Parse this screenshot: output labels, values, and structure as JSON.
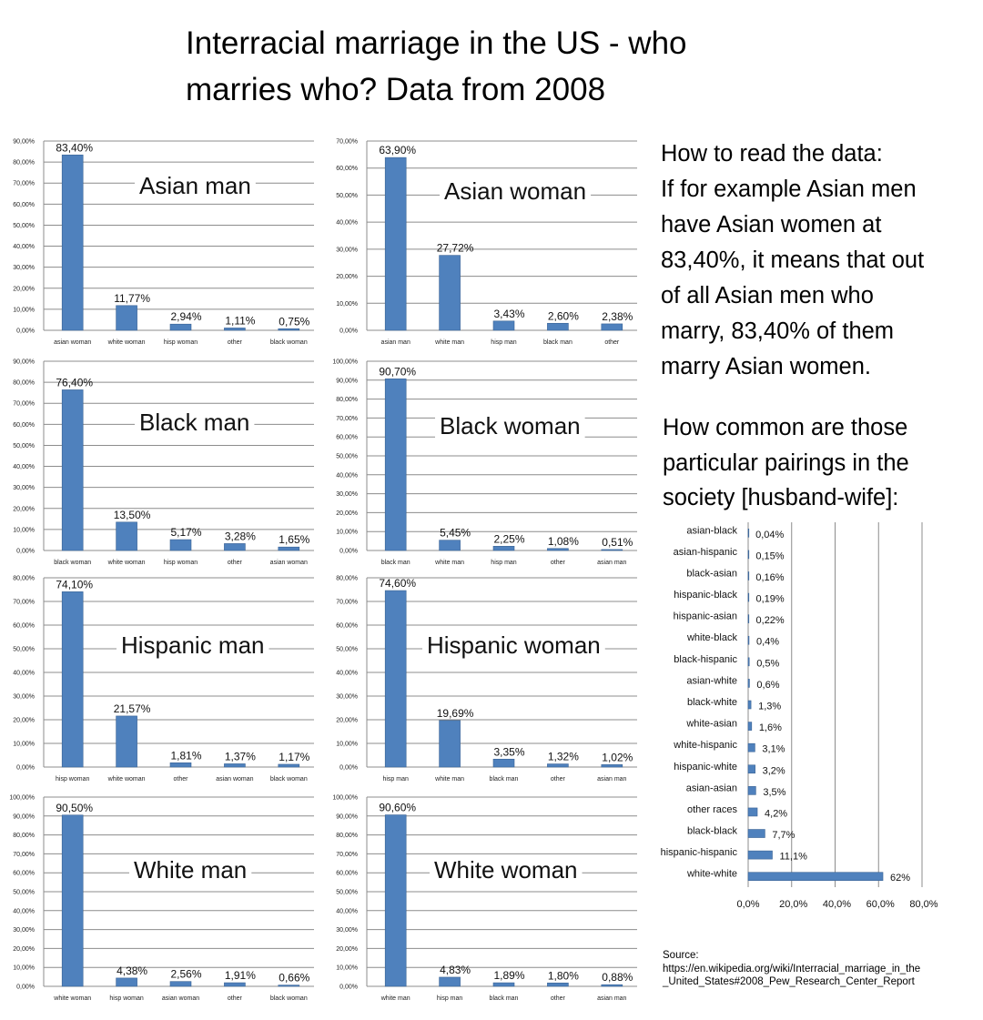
{
  "title": {
    "line1": "Interracial marriage in the US - who",
    "line2": "marries who? Data from 2008"
  },
  "colors": {
    "bar": "#4f81bd",
    "grid": "#8c8c8c"
  },
  "read_note": [
    "How to read the data:",
    "If for example Asian men",
    "have Asian women at",
    "83,40%, it means that out",
    "of all Asian men who",
    "marry, 83,40% of them",
    "marry Asian women."
  ],
  "common_note": [
    "How common are those",
    "particular pairings in the",
    "society [husband-wife]:"
  ],
  "source": {
    "label": "Source:",
    "line1": "https://en.wikipedia.org/wiki/Interracial_marriage_in_the",
    "line2": "_United_States#2008_Pew_Research_Center_Report"
  },
  "chart_data": [
    {
      "type": "bar",
      "title": "Asian man",
      "categories": [
        "asian woman",
        "white woman",
        "hisp woman",
        "other",
        "black woman"
      ],
      "values": [
        83.4,
        11.77,
        2.94,
        1.11,
        0.75
      ],
      "labels": [
        "83,40%",
        "11,77%",
        "2,94%",
        "1,11%",
        "0,75%"
      ],
      "yticks": [
        "0,00%",
        "10,00%",
        "20,00%",
        "30,00%",
        "40,00%",
        "50,00%",
        "60,00%",
        "70,00%",
        "80,00%",
        "90,00%"
      ],
      "ylim": [
        0,
        90
      ],
      "grid": true
    },
    {
      "type": "bar",
      "title": "Asian woman",
      "categories": [
        "asian man",
        "white man",
        "hisp man",
        "black man",
        "other"
      ],
      "values": [
        63.9,
        27.72,
        3.43,
        2.6,
        2.38
      ],
      "labels": [
        "63,90%",
        "27,72%",
        "3,43%",
        "2,60%",
        "2,38%"
      ],
      "yticks": [
        "0,00%",
        "10,00%",
        "20,00%",
        "30,00%",
        "40,00%",
        "50,00%",
        "60,00%",
        "70,00%"
      ],
      "ylim": [
        0,
        70
      ],
      "grid": true
    },
    {
      "type": "bar",
      "title": "Black man",
      "categories": [
        "black woman",
        "white woman",
        "hisp woman",
        "other",
        "asian woman"
      ],
      "values": [
        76.4,
        13.5,
        5.17,
        3.28,
        1.65
      ],
      "labels": [
        "76,40%",
        "13,50%",
        "5,17%",
        "3,28%",
        "1,65%"
      ],
      "yticks": [
        "0,00%",
        "10,00%",
        "20,00%",
        "30,00%",
        "40,00%",
        "50,00%",
        "60,00%",
        "70,00%",
        "80,00%",
        "90,00%"
      ],
      "ylim": [
        0,
        90
      ],
      "grid": true
    },
    {
      "type": "bar",
      "title": "Black woman",
      "categories": [
        "black man",
        "white man",
        "hisp man",
        "other",
        "asian man"
      ],
      "values": [
        90.7,
        5.45,
        2.25,
        1.08,
        0.51
      ],
      "labels": [
        "90,70%",
        "5,45%",
        "2,25%",
        "1,08%",
        "0,51%"
      ],
      "yticks": [
        "0,00%",
        "10,00%",
        "20,00%",
        "30,00%",
        "40,00%",
        "50,00%",
        "60,00%",
        "70,00%",
        "80,00%",
        "90,00%",
        "100,00%"
      ],
      "ylim": [
        0,
        100
      ],
      "grid": true
    },
    {
      "type": "bar",
      "title": "Hispanic man",
      "categories": [
        "hisp woman",
        "white woman",
        "other",
        "asian woman",
        "black woman"
      ],
      "values": [
        74.1,
        21.57,
        1.81,
        1.37,
        1.17
      ],
      "labels": [
        "74,10%",
        "21,57%",
        "1,81%",
        "1,37%",
        "1,17%"
      ],
      "yticks": [
        "0,00%",
        "10,00%",
        "20,00%",
        "30,00%",
        "40,00%",
        "50,00%",
        "60,00%",
        "70,00%",
        "80,00%"
      ],
      "ylim": [
        0,
        80
      ],
      "grid": true
    },
    {
      "type": "bar",
      "title": "Hispanic woman",
      "categories": [
        "hisp man",
        "white man",
        "black man",
        "other",
        "asian man"
      ],
      "values": [
        74.6,
        19.69,
        3.35,
        1.32,
        1.02
      ],
      "labels": [
        "74,60%",
        "19,69%",
        "3,35%",
        "1,32%",
        "1,02%"
      ],
      "yticks": [
        "0,00%",
        "10,00%",
        "20,00%",
        "30,00%",
        "40,00%",
        "50,00%",
        "60,00%",
        "70,00%",
        "80,00%"
      ],
      "ylim": [
        0,
        80
      ],
      "grid": true
    },
    {
      "type": "bar",
      "title": "White man",
      "categories": [
        "white woman",
        "hisp woman",
        "asian woman",
        "other",
        "black woman"
      ],
      "values": [
        90.5,
        4.38,
        2.56,
        1.91,
        0.66
      ],
      "labels": [
        "90,50%",
        "4,38%",
        "2,56%",
        "1,91%",
        "0,66%"
      ],
      "yticks": [
        "0,00%",
        "10,00%",
        "20,00%",
        "30,00%",
        "40,00%",
        "50,00%",
        "60,00%",
        "70,00%",
        "80,00%",
        "90,00%",
        "100,00%"
      ],
      "ylim": [
        0,
        100
      ],
      "grid": true
    },
    {
      "type": "bar",
      "title": "White woman",
      "categories": [
        "white man",
        "hisp man",
        "black man",
        "other",
        "asian man"
      ],
      "values": [
        90.6,
        4.83,
        1.89,
        1.8,
        0.88
      ],
      "labels": [
        "90,60%",
        "4,83%",
        "1,89%",
        "1,80%",
        "0,88%"
      ],
      "yticks": [
        "0,00%",
        "10,00%",
        "20,00%",
        "30,00%",
        "40,00%",
        "50,00%",
        "60,00%",
        "70,00%",
        "80,00%",
        "90,00%",
        "100,00%"
      ],
      "ylim": [
        0,
        100
      ],
      "grid": true
    },
    {
      "type": "bar",
      "orientation": "horizontal",
      "categories": [
        "asian-black",
        "asian-hispanic",
        "black-asian",
        "hispanic-black",
        "hispanic-asian",
        "white-black",
        "black-hispanic",
        "asian-white",
        "black-white",
        "white-asian",
        "white-hispanic",
        "hispanic-white",
        "asian-asian",
        "other races",
        "black-black",
        "hispanic-hispanic",
        "white-white"
      ],
      "values": [
        0.04,
        0.15,
        0.16,
        0.19,
        0.22,
        0.4,
        0.5,
        0.6,
        1.3,
        1.6,
        3.1,
        3.2,
        3.5,
        4.2,
        7.7,
        11.1,
        62
      ],
      "labels": [
        "0,04%",
        "0,15%",
        "0,16%",
        "0,19%",
        "0,22%",
        "0,4%",
        "0,5%",
        "0,6%",
        "1,3%",
        "1,6%",
        "3,1%",
        "3,2%",
        "3,5%",
        "4,2%",
        "7,7%",
        "11,1%",
        "62%"
      ],
      "xticks": [
        "0,0%",
        "20,0%",
        "40,0%",
        "60,0%",
        "80,0%"
      ],
      "xlim": [
        0,
        80
      ],
      "grid": true
    }
  ]
}
